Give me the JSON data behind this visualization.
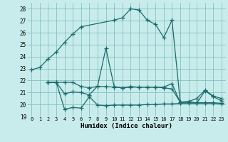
{
  "xlabel": "Humidex (Indice chaleur)",
  "bg_color": "#c8ecec",
  "grid_color": "#7ab8b8",
  "line_color": "#1a6b6b",
  "xlim": [
    -0.5,
    23.5
  ],
  "ylim": [
    19,
    28.5
  ],
  "yticks": [
    19,
    20,
    21,
    22,
    23,
    24,
    25,
    26,
    27,
    28
  ],
  "xticks": [
    0,
    1,
    2,
    3,
    4,
    5,
    6,
    7,
    8,
    9,
    10,
    11,
    12,
    13,
    14,
    15,
    16,
    17,
    18,
    19,
    20,
    21,
    22,
    23
  ],
  "line1_x": [
    0,
    1,
    2,
    3,
    4,
    5,
    6,
    10,
    11,
    12,
    13,
    14,
    15,
    16,
    17,
    18,
    19,
    20,
    21,
    22,
    23
  ],
  "line1_y": [
    22.9,
    23.1,
    23.8,
    24.4,
    25.2,
    25.9,
    26.5,
    27.05,
    27.25,
    28.0,
    27.9,
    27.05,
    26.7,
    25.6,
    27.05,
    20.2,
    20.25,
    20.5,
    21.2,
    20.7,
    20.5
  ],
  "line2_x": [
    2,
    3,
    4,
    5,
    6,
    7,
    8,
    9,
    10,
    11,
    12,
    13,
    14,
    15,
    16,
    17,
    18,
    19,
    20,
    21,
    22,
    23
  ],
  "line2_y": [
    21.85,
    21.85,
    20.9,
    21.05,
    21.0,
    20.8,
    21.55,
    24.7,
    21.5,
    21.4,
    21.5,
    21.45,
    21.45,
    21.45,
    21.45,
    21.75,
    20.15,
    20.2,
    20.1,
    21.15,
    20.65,
    20.3
  ],
  "line3_x": [
    2,
    3,
    4,
    5,
    6,
    7,
    8,
    9,
    10,
    11,
    12,
    13,
    14,
    15,
    16,
    17,
    18,
    19,
    20,
    21,
    22,
    23
  ],
  "line3_y": [
    21.85,
    21.85,
    21.85,
    21.85,
    21.5,
    21.4,
    21.5,
    21.5,
    21.45,
    21.4,
    21.45,
    21.45,
    21.45,
    21.45,
    21.4,
    21.3,
    20.2,
    20.2,
    20.15,
    20.15,
    20.15,
    20.1
  ],
  "line4_x": [
    2,
    3,
    4,
    5,
    6,
    7,
    8,
    9,
    10,
    11,
    12,
    13,
    14,
    15,
    16,
    17,
    18,
    19,
    20,
    21,
    22,
    23
  ],
  "line4_y": [
    21.85,
    21.85,
    19.6,
    19.75,
    19.7,
    20.65,
    19.95,
    19.9,
    19.95,
    19.95,
    19.95,
    19.95,
    20.0,
    20.0,
    20.05,
    20.05,
    20.1,
    20.1,
    20.1,
    20.1,
    20.1,
    20.05
  ]
}
